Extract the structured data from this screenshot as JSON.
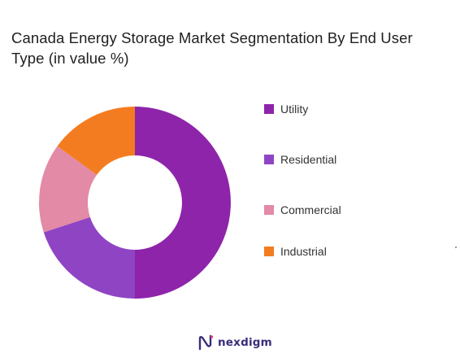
{
  "chart_data": {
    "type": "pie",
    "variant": "donut",
    "title": "Canada Energy Storage Market Segmentation By End User Type (in value %)",
    "categories": [
      "Utility",
      "Residential",
      "Commercial",
      "Industrial"
    ],
    "values": [
      50,
      20,
      15,
      15
    ],
    "colors": [
      "#8e24aa",
      "#8f44c4",
      "#e28aa6",
      "#f47c20"
    ],
    "legend_position": "right",
    "start_angle_deg": 0,
    "direction": "clockwise"
  },
  "brand": {
    "name": "nexdigm",
    "logo_icon": "nexdigm-logo-icon"
  }
}
